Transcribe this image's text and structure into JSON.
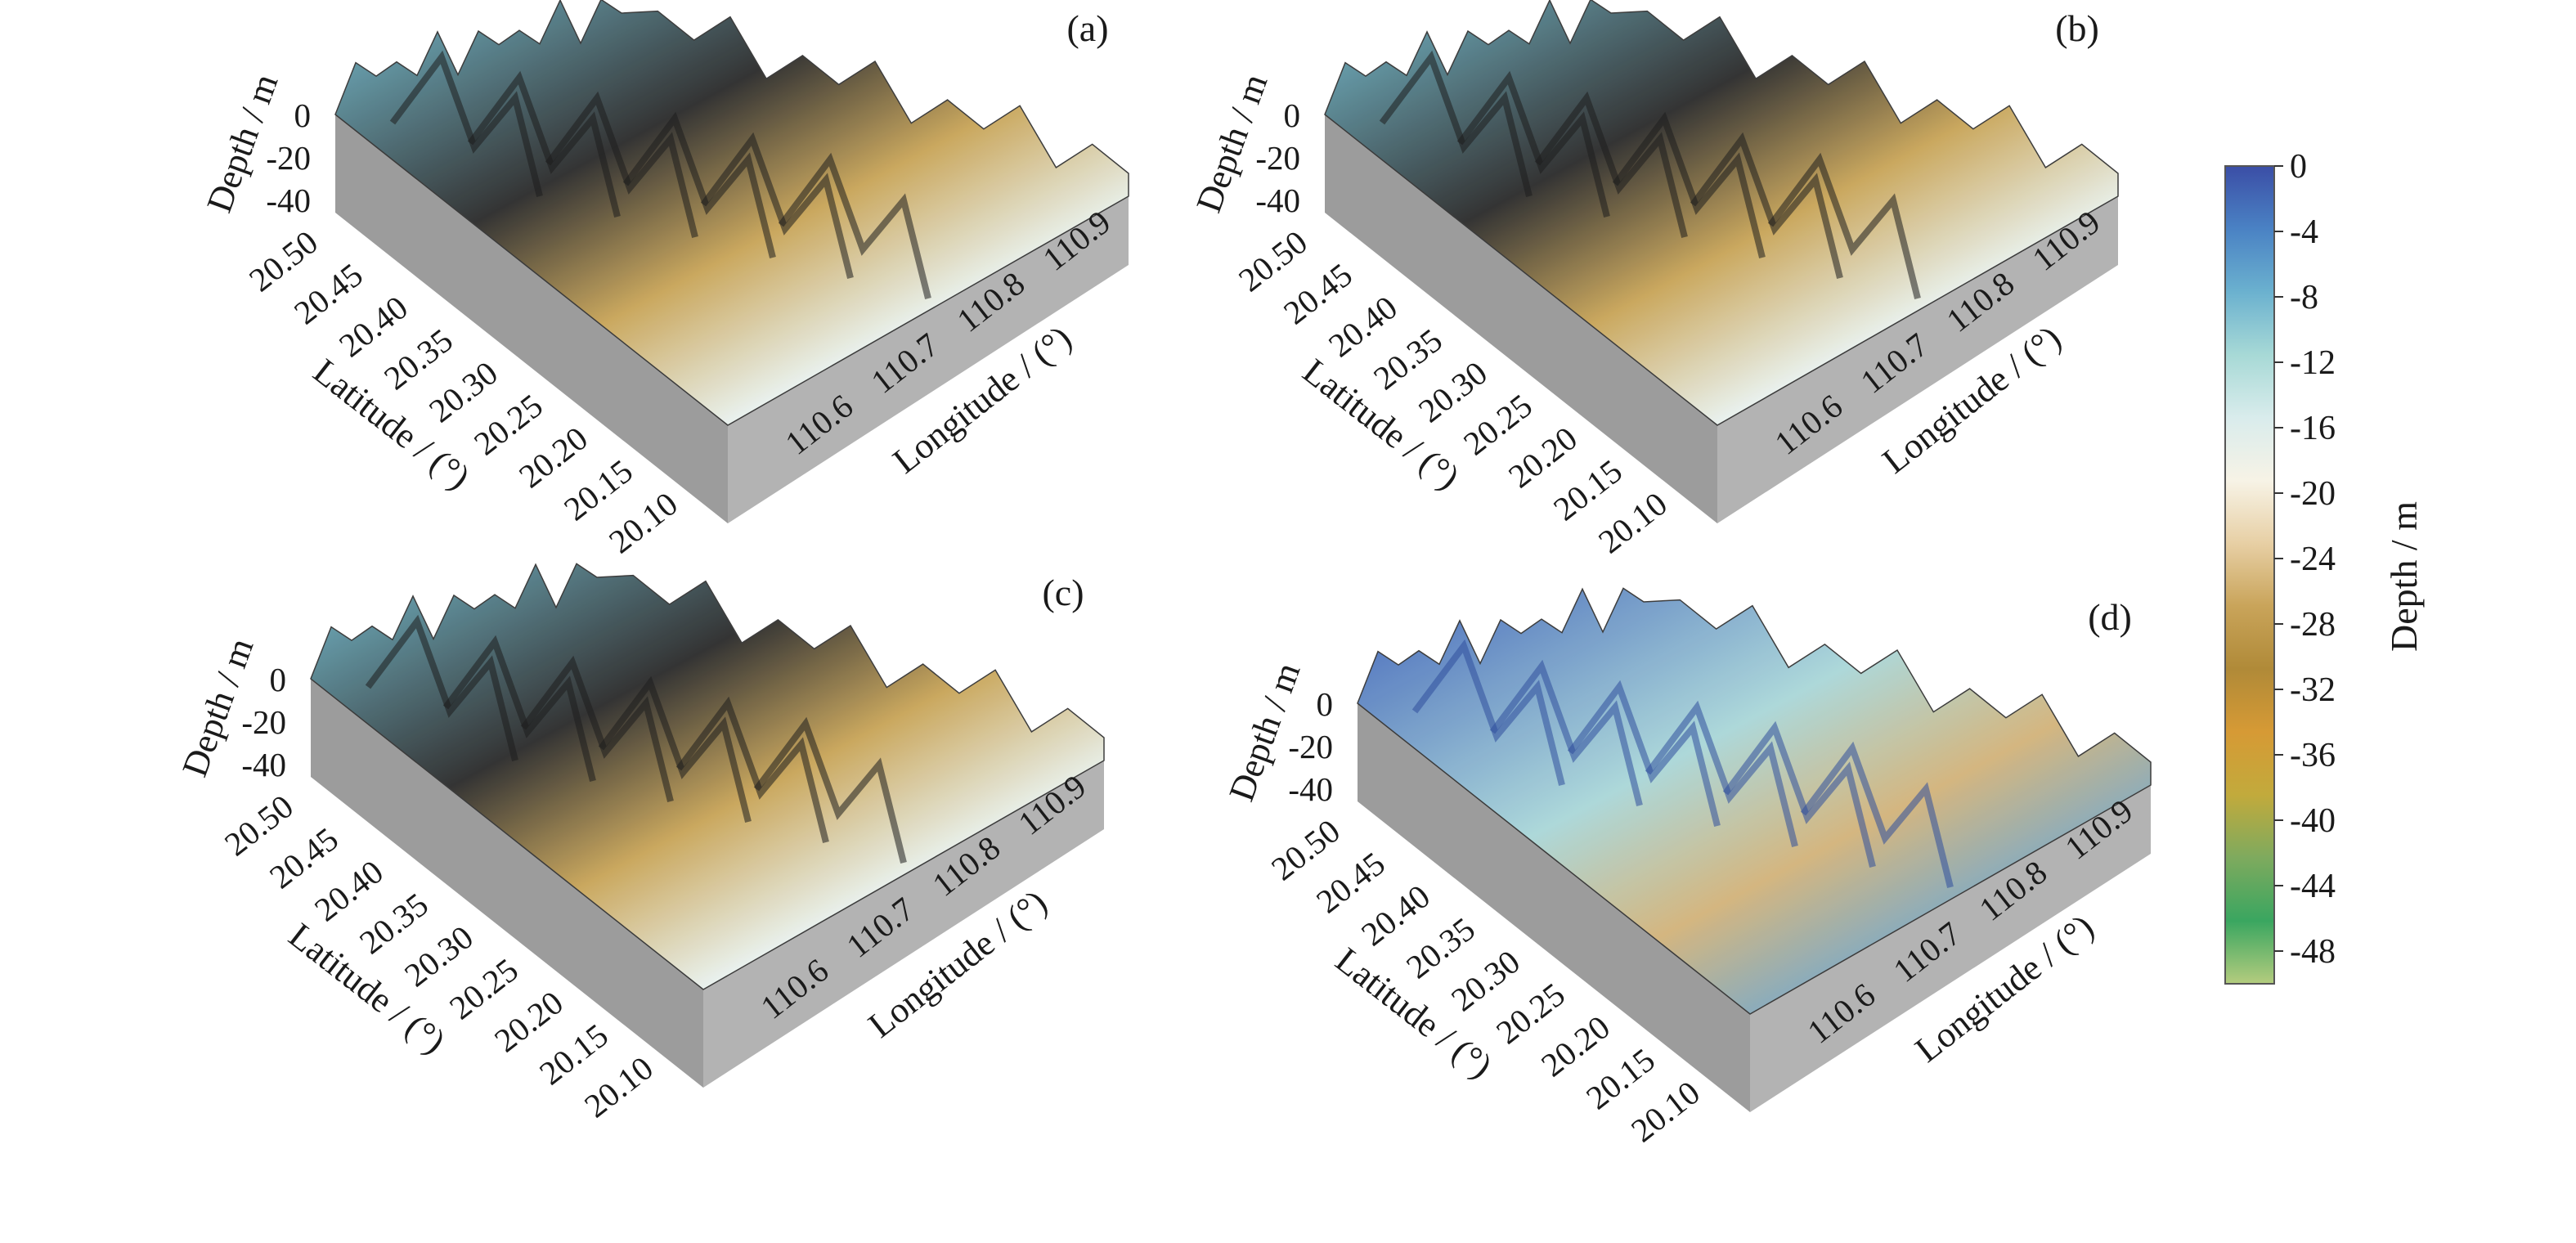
{
  "chart_data": {
    "type": "surface3d",
    "panels": [
      {
        "letter": "(a)",
        "zlabel": "Depth / m",
        "ylabel": "Latitude / (°)",
        "xlabel": "Longitude / (°)",
        "z_ticks": [
          "0",
          "-20",
          "-40"
        ],
        "lat_ticks": [
          "20.50",
          "20.45",
          "20.40",
          "20.35",
          "20.30",
          "20.25",
          "20.20",
          "20.15",
          "20.10"
        ],
        "lon_ticks": [
          "110.6",
          "110.7",
          "110.8",
          "110.9"
        ],
        "zlim": [
          -50,
          0
        ],
        "lat_range": [
          20.1,
          20.5
        ],
        "lon_range": [
          110.55,
          110.95
        ]
      },
      {
        "letter": "(b)",
        "zlabel": "Depth / m",
        "ylabel": "Latitude / (°)",
        "xlabel": "Longitude / (°)",
        "z_ticks": [
          "0",
          "-20",
          "-40"
        ],
        "lat_ticks": [
          "20.50",
          "20.45",
          "20.40",
          "20.35",
          "20.30",
          "20.25",
          "20.20",
          "20.15",
          "20.10"
        ],
        "lon_ticks": [
          "110.6",
          "110.7",
          "110.8",
          "110.9"
        ],
        "zlim": [
          -50,
          0
        ],
        "lat_range": [
          20.1,
          20.5
        ],
        "lon_range": [
          110.55,
          110.95
        ]
      },
      {
        "letter": "(c)",
        "zlabel": "Depth / m",
        "ylabel": "Latitude / (°)",
        "xlabel": "Longitude / (°)",
        "z_ticks": [
          "0",
          "-20",
          "-40"
        ],
        "lat_ticks": [
          "20.50",
          "20.45",
          "20.40",
          "20.35",
          "20.30",
          "20.25",
          "20.20",
          "20.15",
          "20.10"
        ],
        "lon_ticks": [
          "110.6",
          "110.7",
          "110.8",
          "110.9"
        ],
        "zlim": [
          -50,
          0
        ],
        "lat_range": [
          20.1,
          20.5
        ],
        "lon_range": [
          110.55,
          110.95
        ]
      },
      {
        "letter": "(d)",
        "zlabel": "Depth / m",
        "ylabel": "Latitude / (°)",
        "xlabel": "Longitude / (°)",
        "z_ticks": [
          "0",
          "-20",
          "-40"
        ],
        "lat_ticks": [
          "20.50",
          "20.45",
          "20.40",
          "20.35",
          "20.30",
          "20.25",
          "20.20",
          "20.15",
          "20.10"
        ],
        "lon_ticks": [
          "110.6",
          "110.7",
          "110.8",
          "110.9"
        ],
        "zlim": [
          -50,
          0
        ],
        "lat_range": [
          20.1,
          20.5
        ],
        "lon_range": [
          110.55,
          110.95
        ]
      }
    ],
    "colorbar": {
      "title": "Depth / m",
      "ticks": [
        "0",
        "-4",
        "-8",
        "-12",
        "-16",
        "-20",
        "-24",
        "-28",
        "-32",
        "-36",
        "-40",
        "-44",
        "-48"
      ],
      "range": [
        -50,
        0
      ],
      "colors": [
        "#3b4ea6",
        "#4a82c4",
        "#6bb1cf",
        "#a7d9d6",
        "#d9ecec",
        "#f7f3e6",
        "#e7cfa4",
        "#c9a45a",
        "#b08a38",
        "#d69a35",
        "#c2aa3c",
        "#7eaa5e",
        "#3aa660",
        "#b4cc7e"
      ]
    }
  }
}
